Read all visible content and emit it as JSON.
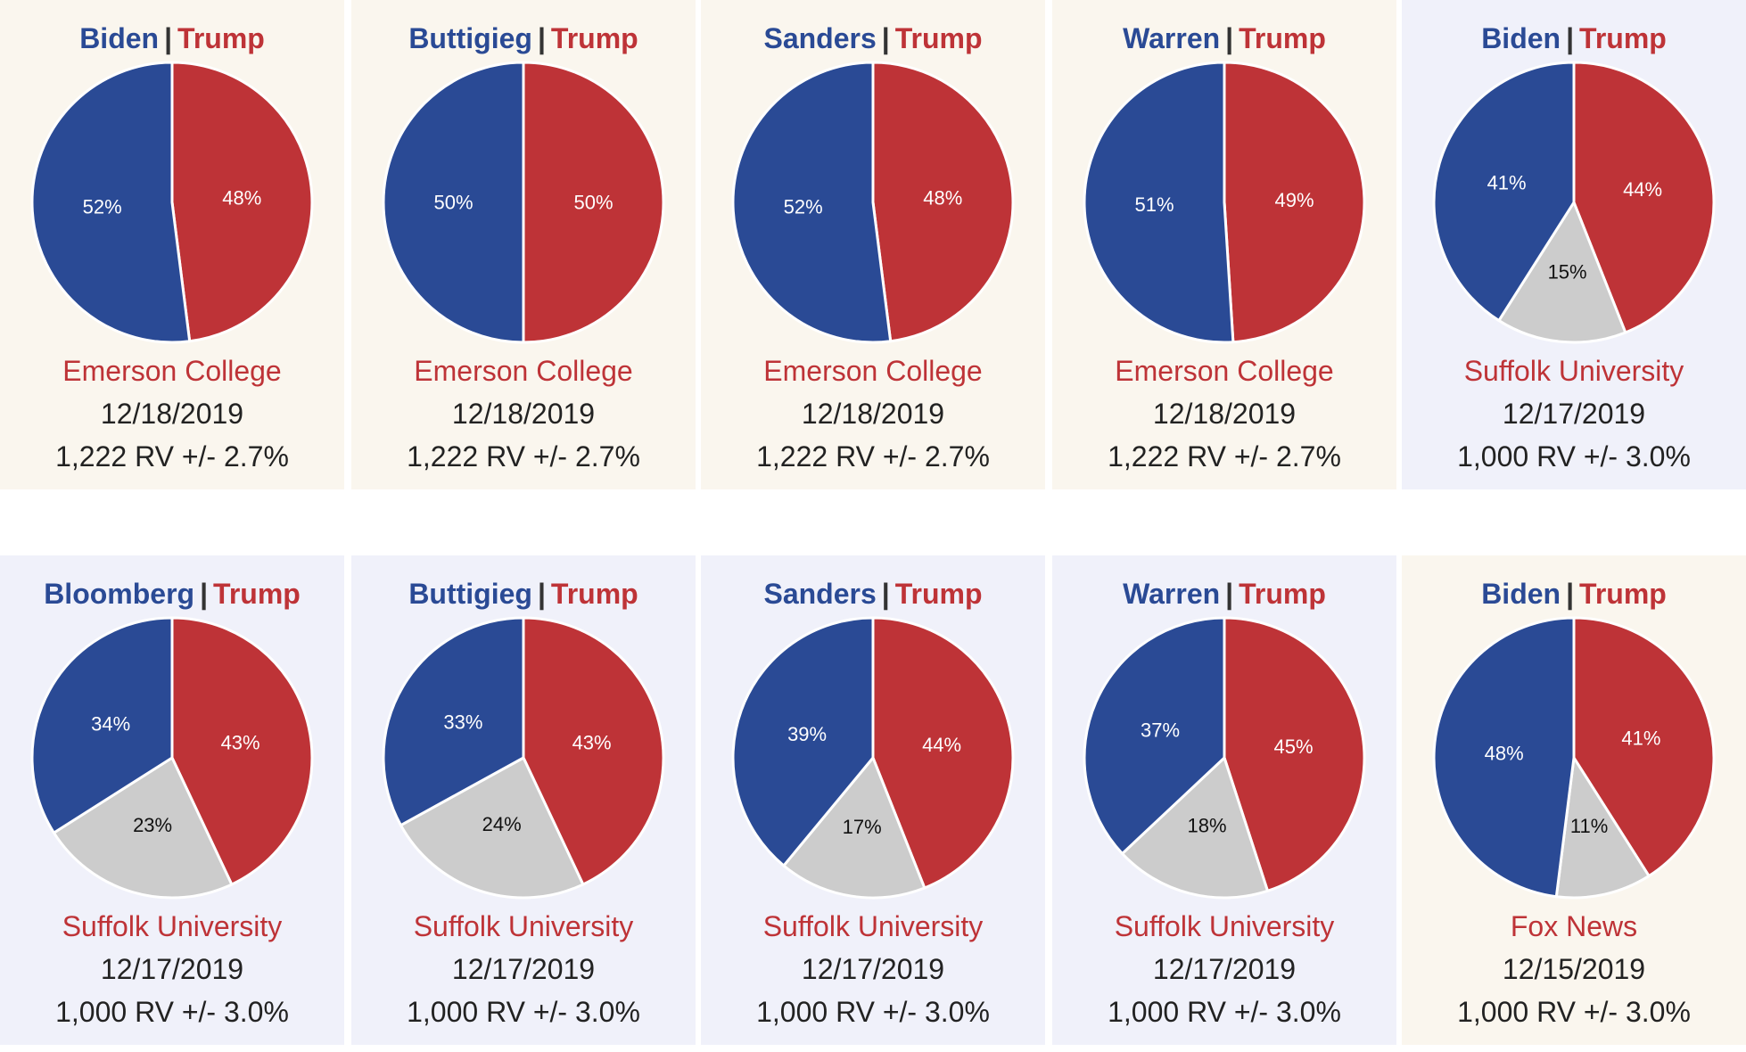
{
  "colors": {
    "democrat": "#2a4a95",
    "republican": "#be3337",
    "undecided": "#cccccc"
  },
  "chart_data": [
    {
      "type": "pie",
      "dem_name": "Biden",
      "separator": "|",
      "rep_name": "Trump",
      "values": [
        52,
        48
      ],
      "labels": [
        "52%",
        "48%"
      ],
      "pollster": "Emerson College",
      "date": "12/18/2019",
      "sample": "1,222 RV +/- 2.7%"
    },
    {
      "type": "pie",
      "dem_name": "Buttigieg",
      "separator": "|",
      "rep_name": "Trump",
      "values": [
        50,
        50
      ],
      "labels": [
        "50%",
        "50%"
      ],
      "pollster": "Emerson College",
      "date": "12/18/2019",
      "sample": "1,222 RV +/- 2.7%"
    },
    {
      "type": "pie",
      "dem_name": "Sanders",
      "separator": "|",
      "rep_name": "Trump",
      "values": [
        52,
        48
      ],
      "labels": [
        "52%",
        "48%"
      ],
      "pollster": "Emerson College",
      "date": "12/18/2019",
      "sample": "1,222 RV +/- 2.7%"
    },
    {
      "type": "pie",
      "dem_name": "Warren",
      "separator": "|",
      "rep_name": "Trump",
      "values": [
        51,
        49
      ],
      "labels": [
        "51%",
        "49%"
      ],
      "pollster": "Emerson College",
      "date": "12/18/2019",
      "sample": "1,222 RV +/- 2.7%"
    },
    {
      "type": "pie",
      "dem_name": "Biden",
      "separator": "|",
      "rep_name": "Trump",
      "values": [
        41,
        44,
        15
      ],
      "labels": [
        "41%",
        "44%",
        "15%"
      ],
      "pollster": "Suffolk University",
      "date": "12/17/2019",
      "sample": "1,000 RV +/- 3.0%"
    },
    {
      "type": "pie",
      "dem_name": "Bloomberg",
      "separator": "|",
      "rep_name": "Trump",
      "values": [
        34,
        43,
        23
      ],
      "labels": [
        "34%",
        "43%",
        "23%"
      ],
      "pollster": "Suffolk University",
      "date": "12/17/2019",
      "sample": "1,000 RV +/- 3.0%"
    },
    {
      "type": "pie",
      "dem_name": "Buttigieg",
      "separator": "|",
      "rep_name": "Trump",
      "values": [
        33,
        43,
        24
      ],
      "labels": [
        "33%",
        "43%",
        "24%"
      ],
      "pollster": "Suffolk University",
      "date": "12/17/2019",
      "sample": "1,000 RV +/- 3.0%"
    },
    {
      "type": "pie",
      "dem_name": "Sanders",
      "separator": "|",
      "rep_name": "Trump",
      "values": [
        39,
        44,
        17
      ],
      "labels": [
        "39%",
        "44%",
        "17%"
      ],
      "pollster": "Suffolk University",
      "date": "12/17/2019",
      "sample": "1,000 RV +/- 3.0%"
    },
    {
      "type": "pie",
      "dem_name": "Warren",
      "separator": "|",
      "rep_name": "Trump",
      "values": [
        37,
        45,
        18
      ],
      "labels": [
        "37%",
        "45%",
        "18%"
      ],
      "pollster": "Suffolk University",
      "date": "12/17/2019",
      "sample": "1,000 RV +/- 3.0%"
    },
    {
      "type": "pie",
      "dem_name": "Biden",
      "separator": "|",
      "rep_name": "Trump",
      "values": [
        48,
        41,
        11
      ],
      "labels": [
        "48%",
        "41%",
        "11%"
      ],
      "pollster": "Fox News",
      "date": "12/15/2019",
      "sample": "1,000 RV +/- 3.0%"
    }
  ]
}
